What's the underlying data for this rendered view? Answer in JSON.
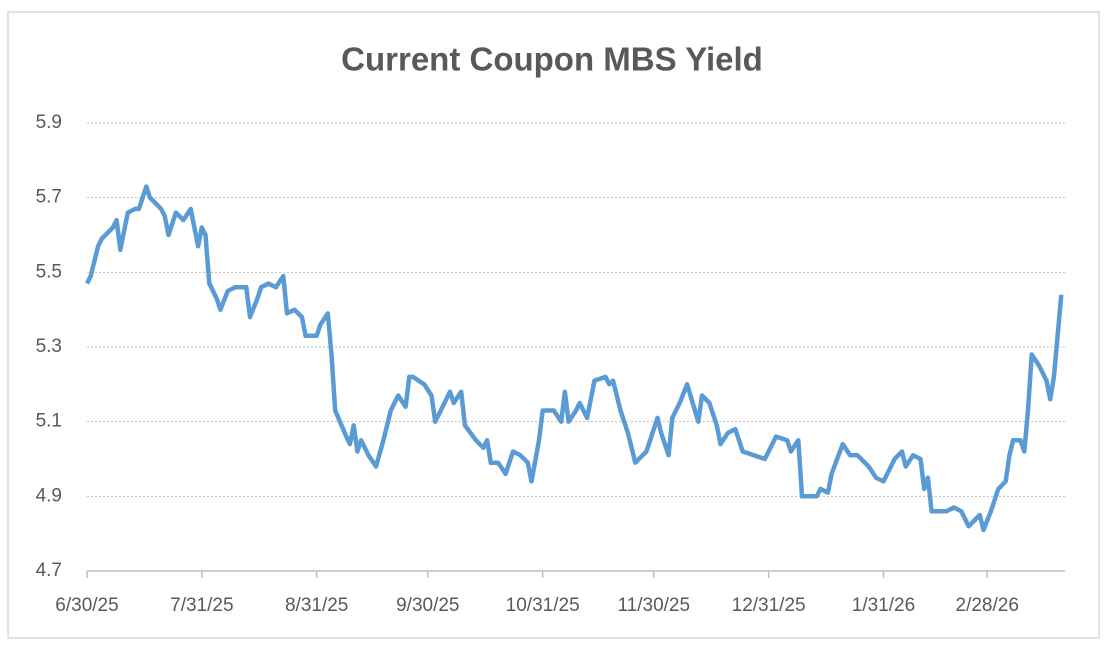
{
  "chart_data": {
    "type": "line",
    "title": "Current Coupon MBS Yield",
    "xlim": [
      "6/30/25",
      "3/21/26"
    ],
    "xticks": [
      "6/30/25",
      "7/31/25",
      "8/31/25",
      "9/30/25",
      "10/31/25",
      "11/30/25",
      "12/31/25",
      "1/31/26",
      "2/28/26"
    ],
    "ylim": [
      4.7,
      5.9
    ],
    "yticks": [
      4.7,
      4.9,
      5.1,
      5.3,
      5.5,
      5.7,
      5.9
    ],
    "grid": true,
    "x": [
      "6/30/25",
      "7/1/25",
      "7/3/25",
      "7/4/25",
      "7/7/25",
      "7/8/25",
      "7/9/25",
      "7/11/25",
      "7/13/25",
      "7/14/25",
      "7/16/25",
      "7/17/25",
      "7/18/25",
      "7/20/25",
      "7/21/25",
      "7/22/25",
      "7/24/25",
      "7/26/25",
      "7/28/25",
      "7/30/25",
      "7/31/25",
      "8/1/25",
      "8/2/25",
      "8/3/25",
      "8/4/25",
      "8/5/25",
      "8/7/25",
      "8/9/25",
      "8/12/25",
      "8/13/25",
      "8/15/25",
      "8/16/25",
      "8/18/25",
      "8/20/25",
      "8/22/25",
      "8/23/25",
      "8/25/25",
      "8/27/25",
      "8/28/25",
      "8/31/25",
      "9/1/25",
      "9/3/25",
      "9/4/25",
      "9/5/25",
      "9/8/25",
      "9/9/25",
      "9/10/25",
      "9/11/25",
      "9/12/25",
      "9/14/25",
      "9/16/25",
      "9/18/25",
      "9/20/25",
      "9/22/25",
      "9/24/25",
      "9/25/25",
      "9/26/25",
      "9/29/25",
      "10/1/25",
      "10/2/25",
      "10/4/25",
      "10/6/25",
      "10/7/25",
      "10/9/25",
      "10/10/25",
      "10/13/25",
      "10/15/25",
      "10/16/25",
      "10/17/25",
      "10/19/25",
      "10/21/25",
      "10/23/25",
      "10/25/25",
      "10/27/25",
      "10/28/25",
      "10/30/25",
      "10/31/25",
      "11/3/25",
      "11/5/25",
      "11/6/25",
      "11/7/25",
      "11/9/25",
      "11/10/25",
      "11/12/25",
      "11/14/25",
      "11/17/25",
      "11/18/25",
      "11/19/25",
      "11/21/25",
      "11/23/25",
      "11/25/25",
      "11/28/25",
      "12/1/25",
      "12/2/25",
      "12/4/25",
      "12/5/25",
      "12/7/25",
      "12/9/25",
      "12/12/25",
      "12/13/25",
      "12/15/25",
      "12/17/25",
      "12/18/25",
      "12/20/25",
      "12/22/25",
      "12/24/25",
      "12/30/25",
      "1/2/26",
      "1/5/26",
      "1/6/26",
      "1/8/26",
      "1/9/26",
      "1/13/26",
      "1/14/26",
      "1/16/26",
      "1/17/26",
      "1/20/26",
      "1/22/26",
      "1/24/26",
      "1/27/26",
      "1/29/26",
      "1/31/26",
      "2/3/26",
      "2/5/26",
      "2/6/26",
      "2/8/26",
      "2/10/26",
      "2/11/26",
      "2/12/26",
      "2/13/26",
      "2/17/26",
      "2/19/26",
      "2/21/26",
      "2/23/26",
      "2/26/26",
      "2/27/26",
      "3/1/26",
      "3/3/26",
      "3/5/26",
      "3/6/26",
      "3/7/26",
      "3/9/26",
      "3/10/26",
      "3/11/26",
      "3/12/26",
      "3/14/26",
      "3/16/26",
      "3/17/26",
      "3/18/26",
      "3/20/26"
    ],
    "series": [
      {
        "name": "Current Coupon MBS Yield",
        "color": "#5b9bd5",
        "values": [
          5.47,
          5.49,
          5.57,
          5.59,
          5.62,
          5.64,
          5.56,
          5.66,
          5.67,
          5.67,
          5.73,
          5.7,
          5.69,
          5.67,
          5.65,
          5.6,
          5.66,
          5.64,
          5.67,
          5.57,
          5.62,
          5.6,
          5.47,
          5.45,
          5.43,
          5.4,
          5.45,
          5.46,
          5.46,
          5.38,
          5.43,
          5.46,
          5.47,
          5.46,
          5.49,
          5.39,
          5.4,
          5.38,
          5.33,
          5.33,
          5.36,
          5.39,
          5.28,
          5.13,
          5.06,
          5.04,
          5.09,
          5.02,
          5.05,
          5.01,
          4.98,
          5.05,
          5.13,
          5.17,
          5.14,
          5.22,
          5.22,
          5.2,
          5.17,
          5.1,
          5.14,
          5.18,
          5.15,
          5.18,
          5.09,
          5.05,
          5.03,
          5.05,
          4.99,
          4.99,
          4.96,
          5.02,
          5.01,
          4.99,
          4.94,
          5.05,
          5.13,
          5.13,
          5.1,
          5.18,
          5.1,
          5.13,
          5.15,
          5.11,
          5.21,
          5.22,
          5.2,
          5.21,
          5.13,
          5.07,
          4.99,
          5.02,
          5.11,
          5.07,
          5.01,
          5.11,
          5.15,
          5.2,
          5.1,
          5.17,
          5.15,
          5.09,
          5.04,
          5.07,
          5.08,
          5.02,
          5.0,
          5.06,
          5.05,
          5.02,
          5.05,
          4.9,
          4.9,
          4.92,
          4.91,
          4.96,
          5.04,
          5.01,
          5.01,
          4.98,
          4.95,
          4.94,
          5.0,
          5.02,
          4.98,
          5.01,
          5.0,
          4.92,
          4.95,
          4.86,
          4.86,
          4.87,
          4.86,
          4.82,
          4.85,
          4.81,
          4.86,
          4.92,
          4.94,
          5.01,
          5.05,
          5.05,
          5.02,
          5.13,
          5.28,
          5.25,
          5.21,
          5.16,
          5.22,
          5.44
        ]
      }
    ]
  }
}
